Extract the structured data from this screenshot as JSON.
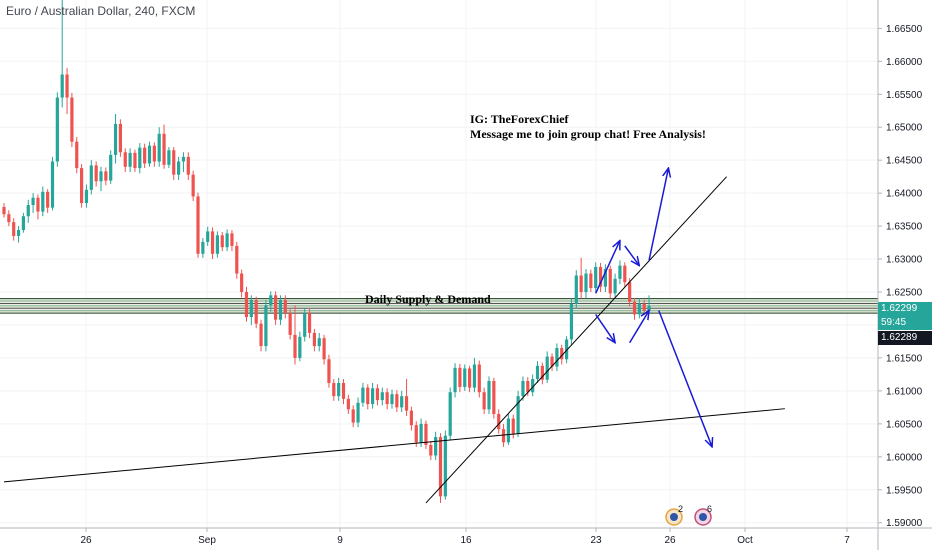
{
  "window": {
    "symbol_title": "Euro / Australian Dollar, 240, FXCM"
  },
  "chart_data": {
    "type": "candlestick",
    "title": "Euro / Australian Dollar, 240, FXCM",
    "price_axis": {
      "ticks": [
        "1.66500",
        "1.66000",
        "1.65500",
        "1.65000",
        "1.64500",
        "1.64000",
        "1.63500",
        "1.63000",
        "1.62500",
        "1.62000",
        "1.61500",
        "1.61000",
        "1.60500",
        "1.60000",
        "1.59500",
        "1.59000"
      ],
      "ylim": [
        1.5892,
        1.6693
      ]
    },
    "time_axis": {
      "labels": [
        "26",
        "Sep",
        "9",
        "16",
        "23",
        "26",
        "Oct",
        "7"
      ]
    },
    "price_tags": {
      "current_price": "1.62299",
      "countdown": "59:45",
      "crosshair_price": "1.62289"
    },
    "annotations": {
      "note_line1": "IG: TheForexChief",
      "note_line2": "Message me to join group chat! Free Analysis!",
      "zone_label": "Daily Supply & Demand"
    },
    "events": [
      {
        "icon": "economic-event-icon",
        "count": "2"
      },
      {
        "icon": "economic-event-icon",
        "count": "6"
      }
    ],
    "colors": {
      "up": "#26a69a",
      "down": "#ef5350",
      "arrows": "#1a1ad6",
      "trendlines": "#000000"
    },
    "supply_demand_zone": [
      1.6218,
      1.624
    ],
    "candles_ohlc": [
      [
        1.6379,
        1.6385,
        1.6363,
        1.6368
      ],
      [
        1.6368,
        1.6374,
        1.635,
        1.6356
      ],
      [
        1.6356,
        1.6362,
        1.6328,
        1.6335
      ],
      [
        1.6335,
        1.635,
        1.6325,
        1.6344
      ],
      [
        1.6344,
        1.637,
        1.634,
        1.6365
      ],
      [
        1.6365,
        1.639,
        1.6355,
        1.6382
      ],
      [
        1.6382,
        1.64,
        1.637,
        1.6393
      ],
      [
        1.6393,
        1.6398,
        1.636,
        1.6372
      ],
      [
        1.6372,
        1.641,
        1.6365,
        1.6402
      ],
      [
        1.6402,
        1.6406,
        1.637,
        1.6378
      ],
      [
        1.6378,
        1.6455,
        1.6374,
        1.6448
      ],
      [
        1.6448,
        1.6553,
        1.644,
        1.6545
      ],
      [
        1.6545,
        1.6693,
        1.653,
        1.658
      ],
      [
        1.658,
        1.659,
        1.652,
        1.6545
      ],
      [
        1.6545,
        1.6552,
        1.647,
        1.6478
      ],
      [
        1.6478,
        1.6485,
        1.643,
        1.6438
      ],
      [
        1.6438,
        1.6444,
        1.6378,
        1.6385
      ],
      [
        1.6385,
        1.6413,
        1.6378,
        1.6405
      ],
      [
        1.6405,
        1.645,
        1.6398,
        1.6442
      ],
      [
        1.6442,
        1.6448,
        1.641,
        1.6418
      ],
      [
        1.6418,
        1.644,
        1.6403,
        1.6433
      ],
      [
        1.6433,
        1.6439,
        1.6412,
        1.6419
      ],
      [
        1.6419,
        1.6465,
        1.6414,
        1.6458
      ],
      [
        1.6458,
        1.652,
        1.6445,
        1.6505
      ],
      [
        1.6505,
        1.6512,
        1.6455,
        1.6462
      ],
      [
        1.6462,
        1.6468,
        1.6432,
        1.644
      ],
      [
        1.644,
        1.6468,
        1.6432,
        1.6461
      ],
      [
        1.6461,
        1.6466,
        1.6432,
        1.6438
      ],
      [
        1.6438,
        1.6476,
        1.643,
        1.6469
      ],
      [
        1.6469,
        1.6475,
        1.6438,
        1.6445
      ],
      [
        1.6445,
        1.6478,
        1.644,
        1.6472
      ],
      [
        1.6472,
        1.6477,
        1.644,
        1.6448
      ],
      [
        1.6448,
        1.65,
        1.644,
        1.649
      ],
      [
        1.649,
        1.6504,
        1.6437,
        1.6443
      ],
      [
        1.6443,
        1.647,
        1.6438,
        1.6465
      ],
      [
        1.6465,
        1.647,
        1.642,
        1.6428
      ],
      [
        1.6428,
        1.6455,
        1.642,
        1.6448
      ],
      [
        1.6448,
        1.6462,
        1.6432,
        1.6455
      ],
      [
        1.6455,
        1.6462,
        1.642,
        1.6428
      ],
      [
        1.6428,
        1.6434,
        1.6388,
        1.6395
      ],
      [
        1.6395,
        1.6401,
        1.6302,
        1.6308
      ],
      [
        1.6308,
        1.6332,
        1.6302,
        1.6326
      ],
      [
        1.6326,
        1.6349,
        1.632,
        1.6342
      ],
      [
        1.6342,
        1.6348,
        1.63,
        1.6308
      ],
      [
        1.6308,
        1.6342,
        1.6302,
        1.6336
      ],
      [
        1.6336,
        1.6341,
        1.6312,
        1.6318
      ],
      [
        1.6318,
        1.6345,
        1.6312,
        1.6339
      ],
      [
        1.6339,
        1.6344,
        1.6312,
        1.632
      ],
      [
        1.632,
        1.6326,
        1.627,
        1.6278
      ],
      [
        1.6278,
        1.6284,
        1.6242,
        1.625
      ],
      [
        1.625,
        1.6258,
        1.6205,
        1.6212
      ],
      [
        1.6212,
        1.6245,
        1.62,
        1.6238
      ],
      [
        1.6238,
        1.6243,
        1.6195,
        1.6202
      ],
      [
        1.6202,
        1.6208,
        1.616,
        1.6168
      ],
      [
        1.6168,
        1.6238,
        1.616,
        1.623
      ],
      [
        1.623,
        1.6251,
        1.622,
        1.6245
      ],
      [
        1.6245,
        1.6251,
        1.62,
        1.6208
      ],
      [
        1.6208,
        1.6245,
        1.62,
        1.6238
      ],
      [
        1.6238,
        1.6245,
        1.621,
        1.6218
      ],
      [
        1.6218,
        1.6224,
        1.6178,
        1.6185
      ],
      [
        1.6185,
        1.623,
        1.614,
        1.615
      ],
      [
        1.615,
        1.619,
        1.6145,
        1.6182
      ],
      [
        1.6182,
        1.6225,
        1.6175,
        1.6218
      ],
      [
        1.6218,
        1.6224,
        1.618,
        1.6188
      ],
      [
        1.6188,
        1.6194,
        1.616,
        1.6168
      ],
      [
        1.6168,
        1.6188,
        1.616,
        1.618
      ],
      [
        1.618,
        1.6185,
        1.614,
        1.6148
      ],
      [
        1.6148,
        1.6155,
        1.6105,
        1.6112
      ],
      [
        1.6112,
        1.6118,
        1.6085,
        1.6092
      ],
      [
        1.6092,
        1.612,
        1.6085,
        1.6112
      ],
      [
        1.6112,
        1.6118,
        1.608,
        1.6088
      ],
      [
        1.6088,
        1.6094,
        1.6065,
        1.6072
      ],
      [
        1.6072,
        1.6078,
        1.6045,
        1.6052
      ],
      [
        1.6052,
        1.609,
        1.6045,
        1.6082
      ],
      [
        1.6082,
        1.6112,
        1.6076,
        1.6105
      ],
      [
        1.6105,
        1.611,
        1.6072,
        1.608
      ],
      [
        1.608,
        1.6112,
        1.6073,
        1.6104
      ],
      [
        1.6104,
        1.611,
        1.6078,
        1.6086
      ],
      [
        1.6086,
        1.6105,
        1.6078,
        1.6098
      ],
      [
        1.6098,
        1.6104,
        1.6072,
        1.608
      ],
      [
        1.608,
        1.6102,
        1.6073,
        1.6095
      ],
      [
        1.6095,
        1.6101,
        1.6068,
        1.6075
      ],
      [
        1.6075,
        1.61,
        1.6068,
        1.6092
      ],
      [
        1.6092,
        1.6118,
        1.6062,
        1.607
      ],
      [
        1.607,
        1.6076,
        1.604,
        1.6048
      ],
      [
        1.6048,
        1.6054,
        1.6015,
        1.6022
      ],
      [
        1.6022,
        1.6058,
        1.6015,
        1.605
      ],
      [
        1.605,
        1.6055,
        1.6012,
        1.6018
      ],
      [
        1.6018,
        1.6024,
        1.5995,
        1.6002
      ],
      [
        1.6002,
        1.6038,
        1.5995,
        1.603
      ],
      [
        1.603,
        1.6036,
        1.593,
        1.594
      ],
      [
        1.594,
        1.604,
        1.5935,
        1.6032
      ],
      [
        1.6032,
        1.6105,
        1.6025,
        1.6098
      ],
      [
        1.6098,
        1.6142,
        1.609,
        1.6135
      ],
      [
        1.6135,
        1.6141,
        1.6098,
        1.6106
      ],
      [
        1.6106,
        1.614,
        1.61,
        1.6134
      ],
      [
        1.6134,
        1.6138,
        1.6098,
        1.6105
      ],
      [
        1.6105,
        1.615,
        1.6098,
        1.614
      ],
      [
        1.614,
        1.6146,
        1.609,
        1.6098
      ],
      [
        1.6098,
        1.6105,
        1.6065,
        1.6072
      ],
      [
        1.6072,
        1.6122,
        1.6065,
        1.6115
      ],
      [
        1.6115,
        1.612,
        1.6058,
        1.6065
      ],
      [
        1.6065,
        1.6072,
        1.6035,
        1.6042
      ],
      [
        1.6042,
        1.605,
        1.6015,
        1.6022
      ],
      [
        1.6022,
        1.6065,
        1.6018,
        1.6058
      ],
      [
        1.6058,
        1.6064,
        1.6028,
        1.6035
      ],
      [
        1.6035,
        1.61,
        1.603,
        1.6092
      ],
      [
        1.6092,
        1.6122,
        1.6085,
        1.6115
      ],
      [
        1.6115,
        1.6121,
        1.6092,
        1.6098
      ],
      [
        1.6098,
        1.6125,
        1.6092,
        1.6118
      ],
      [
        1.6118,
        1.6145,
        1.6112,
        1.6138
      ],
      [
        1.6138,
        1.6143,
        1.611,
        1.6117
      ],
      [
        1.6117,
        1.616,
        1.6112,
        1.6152
      ],
      [
        1.6152,
        1.6157,
        1.613,
        1.6137
      ],
      [
        1.6137,
        1.6172,
        1.613,
        1.6165
      ],
      [
        1.6165,
        1.617,
        1.614,
        1.6148
      ],
      [
        1.6148,
        1.6183,
        1.6142,
        1.6178
      ],
      [
        1.6178,
        1.624,
        1.617,
        1.6232
      ],
      [
        1.6232,
        1.6283,
        1.6225,
        1.6275
      ],
      [
        1.6275,
        1.6302,
        1.624,
        1.625
      ],
      [
        1.625,
        1.6285,
        1.624,
        1.6278
      ],
      [
        1.6278,
        1.6284,
        1.625,
        1.6256
      ],
      [
        1.6256,
        1.6295,
        1.625,
        1.6288
      ],
      [
        1.6288,
        1.6294,
        1.625,
        1.6258
      ],
      [
        1.6258,
        1.6292,
        1.625,
        1.6285
      ],
      [
        1.6285,
        1.629,
        1.624,
        1.6248
      ],
      [
        1.6248,
        1.6278,
        1.624,
        1.627
      ],
      [
        1.627,
        1.6298,
        1.6262,
        1.629
      ],
      [
        1.629,
        1.6295,
        1.6258,
        1.6265
      ],
      [
        1.6265,
        1.6271,
        1.6228,
        1.6235
      ],
      [
        1.6235,
        1.6241,
        1.6208,
        1.6216
      ],
      [
        1.6216,
        1.624,
        1.621,
        1.6232
      ],
      [
        1.6232,
        1.6238,
        1.6215,
        1.6222
      ],
      [
        1.6222,
        1.6245,
        1.6218,
        1.6229
      ]
    ],
    "trendlines": [
      {
        "name": "long-term-trendline",
        "from": [
          0,
          1.5962
        ],
        "to": [
          161,
          1.6073
        ]
      },
      {
        "name": "rising-trendline",
        "from": [
          87,
          1.593
        ],
        "to": [
          149,
          1.6425
        ]
      }
    ],
    "projection_arrows": [
      {
        "name": "arrow-up-first",
        "from": [
          122,
          1.6248
        ],
        "to": [
          127,
          1.6328
        ]
      },
      {
        "name": "arrow-down-first",
        "from": [
          122,
          1.6216
        ],
        "to": [
          126,
          1.6173
        ]
      },
      {
        "name": "arrow-down-to-line",
        "from": [
          128,
          1.632
        ],
        "to": [
          131,
          1.629
        ]
      },
      {
        "name": "arrow-up-high",
        "from": [
          133,
          1.6298
        ],
        "to": [
          137,
          1.6438
        ]
      },
      {
        "name": "arrow-up-after-dip",
        "from": [
          129,
          1.6173
        ],
        "to": [
          133,
          1.6222
        ]
      },
      {
        "name": "arrow-down-low",
        "from": [
          135,
          1.6222
        ],
        "to": [
          146,
          1.6015
        ]
      }
    ]
  }
}
